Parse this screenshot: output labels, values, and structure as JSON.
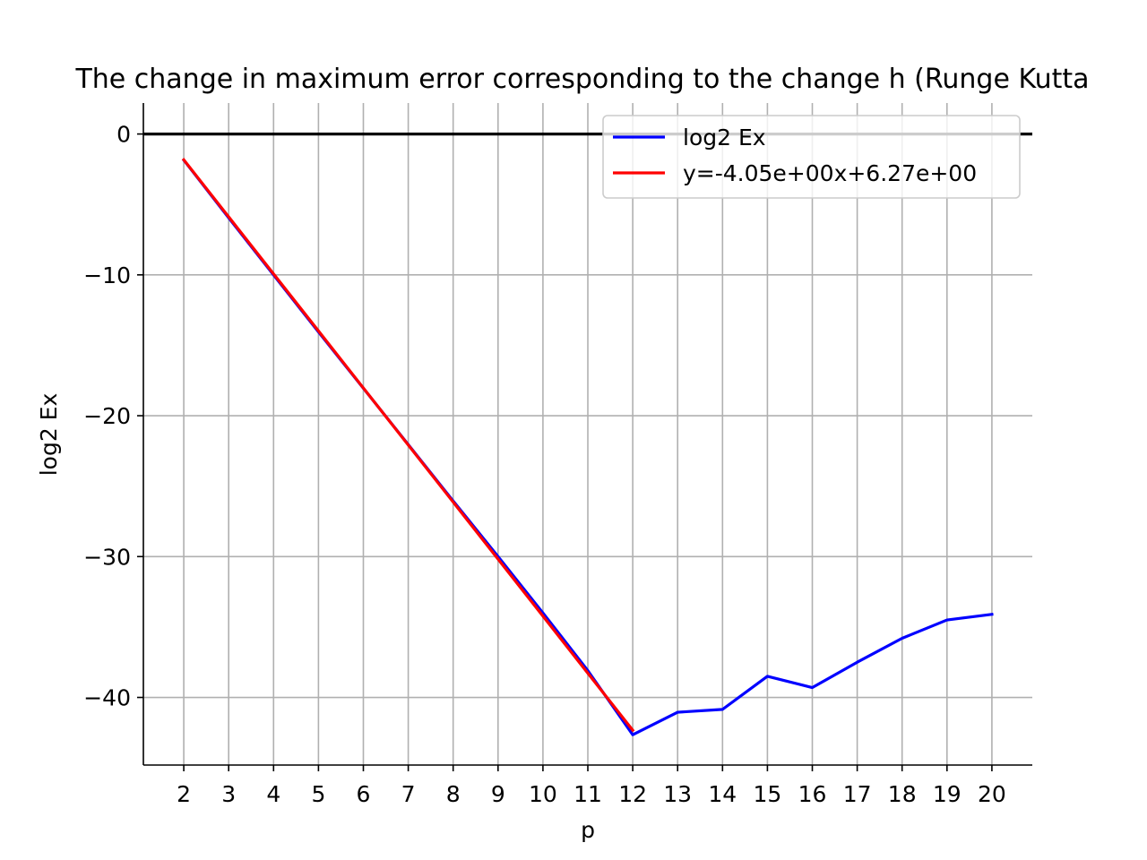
{
  "chart_data": {
    "type": "line",
    "title": "The change in maximum error corresponding to the change h (Runge Kutta",
    "xlabel": "p",
    "ylabel": "log2 Ex",
    "xlim": [
      1.1,
      20.9
    ],
    "ylim": [
      -44.8,
      2.2
    ],
    "xticks": [
      2,
      3,
      4,
      5,
      6,
      7,
      8,
      9,
      10,
      11,
      12,
      13,
      14,
      15,
      16,
      17,
      18,
      19,
      20
    ],
    "yticks": [
      0,
      -10,
      -20,
      -30,
      -40
    ],
    "ytick_labels": [
      "0",
      "−10",
      "−20",
      "−30",
      "−40"
    ],
    "grid": true,
    "zero_line": true,
    "legend_position": "top-right",
    "series": [
      {
        "name": "log2 Ex",
        "color": "#0000ff",
        "x": [
          2,
          3,
          4,
          5,
          6,
          7,
          8,
          9,
          10,
          11,
          12,
          13,
          14,
          15,
          16,
          17,
          18,
          19,
          20
        ],
        "y": [
          -1.85,
          -5.95,
          -10.0,
          -14.05,
          -18.05,
          -22.05,
          -26.05,
          -30.0,
          -34.0,
          -38.1,
          -42.65,
          -41.05,
          -40.85,
          -38.5,
          -39.3,
          -37.5,
          -35.8,
          -34.5,
          -34.1
        ]
      },
      {
        "name": "y=-4.05e+00x+6.27e+00",
        "color": "#ff0000",
        "x": [
          2,
          3,
          4,
          5,
          6,
          7,
          8,
          9,
          10,
          11,
          12
        ],
        "y": [
          -1.83,
          -5.88,
          -9.93,
          -13.98,
          -18.03,
          -22.08,
          -26.13,
          -30.18,
          -34.23,
          -38.28,
          -42.33
        ]
      }
    ]
  }
}
